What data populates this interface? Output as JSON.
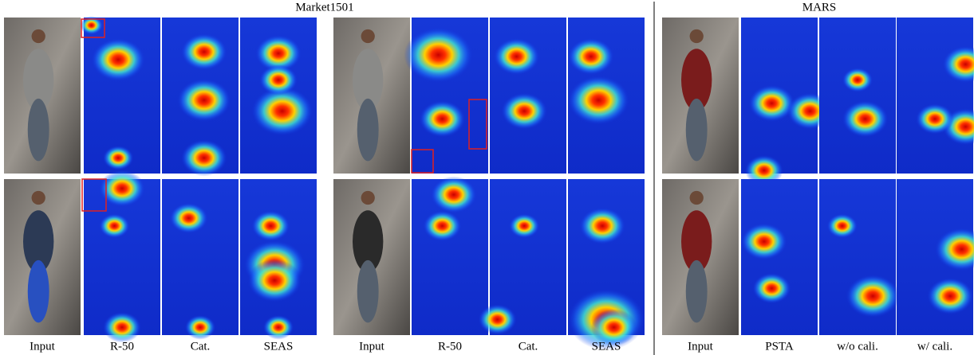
{
  "figure": {
    "groups": [
      {
        "title": "Market1501",
        "columns": [
          "Input",
          "R-50",
          "Cat.",
          "SEAS",
          "Input",
          "R-50",
          "Cat.",
          "SEAS"
        ]
      },
      {
        "title": "MARS",
        "columns": [
          "Input",
          "PSTA",
          "w/o cali.",
          "w/ cali."
        ]
      }
    ]
  }
}
